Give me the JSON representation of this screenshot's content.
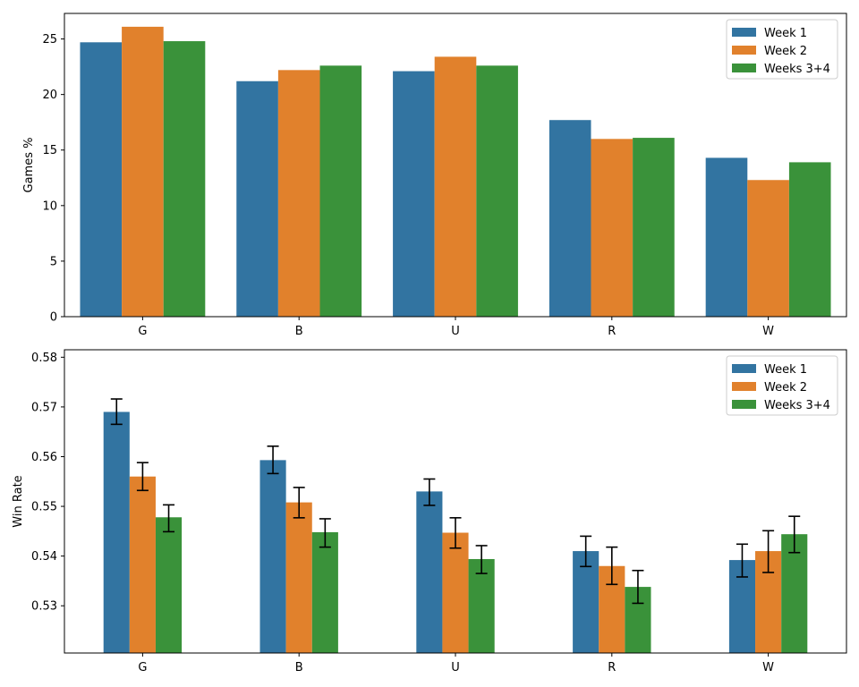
{
  "colors": {
    "series": [
      "#3274a1",
      "#e1812c",
      "#3a923a"
    ],
    "axis": "#000000",
    "background": "#ffffff"
  },
  "chart_data": [
    {
      "type": "bar",
      "title": "",
      "xlabel": "",
      "ylabel": "Games %",
      "categories": [
        "G",
        "B",
        "U",
        "R",
        "W"
      ],
      "series": [
        {
          "name": "Week 1",
          "values": [
            24.7,
            21.2,
            22.1,
            17.7,
            14.3
          ]
        },
        {
          "name": "Week 2",
          "values": [
            26.1,
            22.2,
            23.4,
            16.0,
            12.3
          ]
        },
        {
          "name": "Weeks 3+4",
          "values": [
            24.8,
            22.6,
            22.6,
            16.1,
            13.9
          ]
        }
      ],
      "ylim": [
        0,
        27.3
      ],
      "yticks": [
        0,
        5,
        10,
        15,
        20,
        25
      ],
      "ytick_labels": [
        "0",
        "5",
        "10",
        "15",
        "20",
        "25"
      ],
      "legend": "top-right",
      "grid": false
    },
    {
      "type": "bar",
      "title": "",
      "xlabel": "",
      "ylabel": "Win Rate",
      "categories": [
        "G",
        "B",
        "U",
        "R",
        "W"
      ],
      "series": [
        {
          "name": "Week 1",
          "values": [
            0.569,
            0.5593,
            0.553,
            0.541,
            0.5392
          ],
          "error": [
            [
              0.5665,
              0.5716
            ],
            [
              0.5566,
              0.5621
            ],
            [
              0.5502,
              0.5555
            ],
            [
              0.5379,
              0.544
            ],
            [
              0.5358,
              0.5424
            ]
          ]
        },
        {
          "name": "Week 2",
          "values": [
            0.556,
            0.5508,
            0.5447,
            0.538,
            0.541
          ],
          "error": [
            [
              0.5532,
              0.5588
            ],
            [
              0.5477,
              0.5538
            ],
            [
              0.5416,
              0.5477
            ],
            [
              0.5343,
              0.5418
            ],
            [
              0.5367,
              0.5451
            ]
          ]
        },
        {
          "name": "Weeks 3+4",
          "values": [
            0.5478,
            0.5448,
            0.5394,
            0.5338,
            0.5444
          ],
          "error": [
            [
              0.5449,
              0.5503
            ],
            [
              0.5418,
              0.5475
            ],
            [
              0.5365,
              0.5421
            ],
            [
              0.5305,
              0.5371
            ],
            [
              0.5407,
              0.548
            ]
          ]
        }
      ],
      "ylim": [
        0.5205,
        0.5815
      ],
      "yticks": [
        0.53,
        0.54,
        0.55,
        0.56,
        0.57,
        0.58
      ],
      "ytick_labels": [
        "0.53",
        "0.54",
        "0.55",
        "0.56",
        "0.57",
        "0.58"
      ],
      "legend": "top-right",
      "grid": false
    }
  ]
}
